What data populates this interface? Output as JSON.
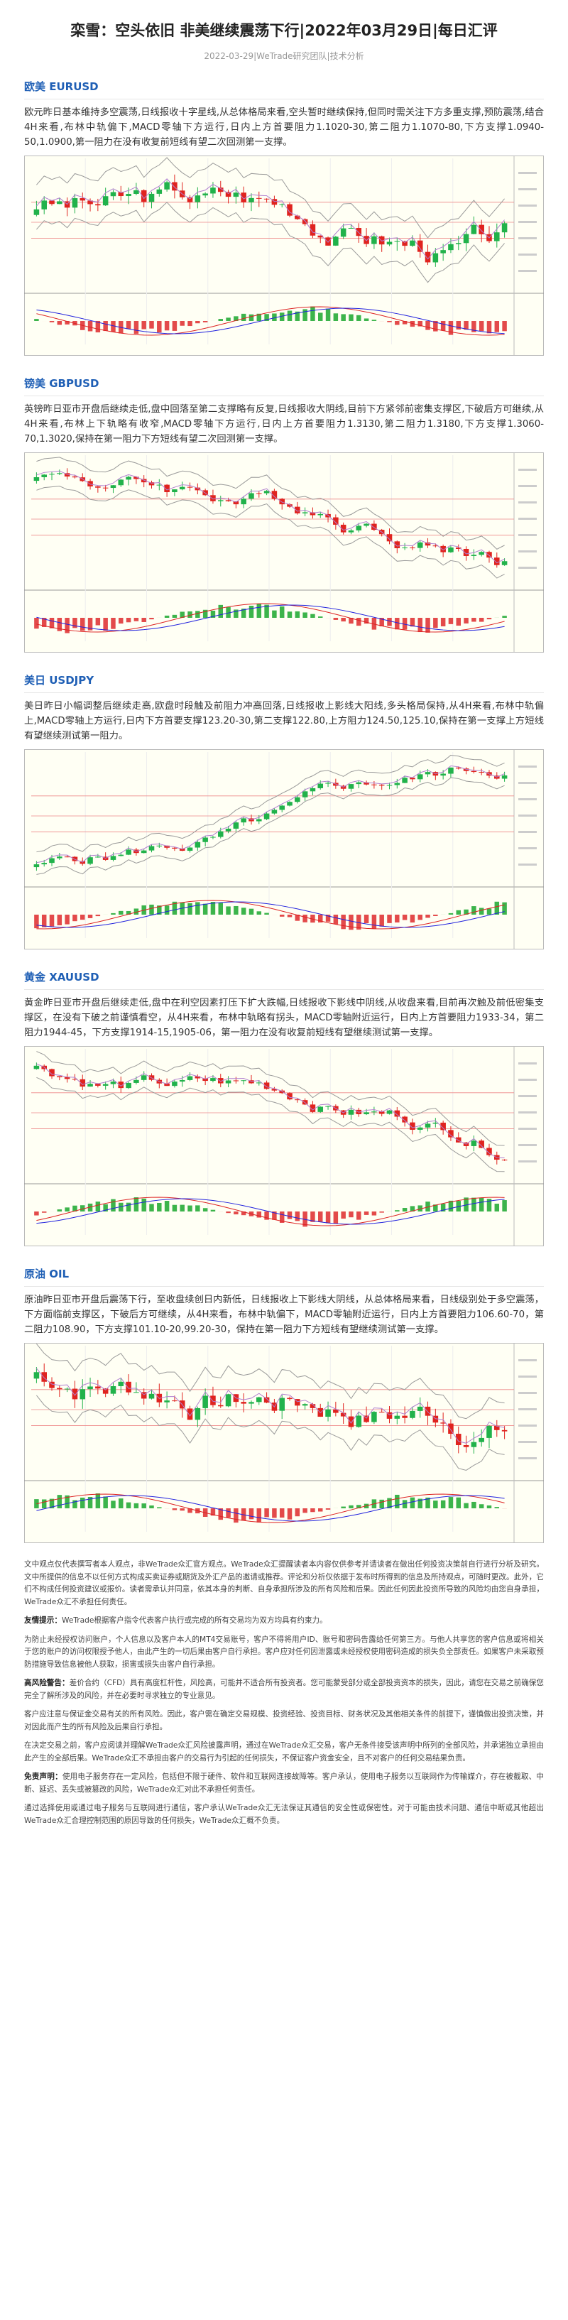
{
  "header": {
    "title": "栾雪：空头依旧 非美继续震荡下行|2022年03月29日|每日汇评",
    "meta": "2022-03-29|WeTrade研究团队|技术分析"
  },
  "sections": [
    {
      "heading": "欧美 EURUSD",
      "text": "欧元昨日基本维持多空震荡,日线报收十字星线,从总体格局来看,空头暂时继续保持,但同时需关注下方多重支撑,预防震荡,结合4H来看,布林中轨偏下,MACD零轴下方运行,日内上方首要阻力1.1020-30,第二阻力1.1070-80,下方支撑1.0940-50,1.0900,第一阻力在没有收复前短线有望二次回测第一支撑。"
    },
    {
      "heading": "镑美 GBPUSD",
      "text": "英镑昨日亚市开盘后继续走低,盘中回落至第二支撑略有反复,日线报收大阴线,目前下方紧邻前密集支撑区,下破后方可继续,从4H来看,布林上下轨略有收窄,MACD零轴下方运行,日内上方首要阻力1.3130,第二阻力1.3180,下方支撑1.3060-70,1.3020,保持在第一阻力下方短线有望二次回测第一支撑。"
    },
    {
      "heading": "美日 USDJPY",
      "text": "美日昨日小幅调整后继续走高,欧盘时段触及前阻力冲高回落,日线报收上影线大阳线,多头格局保持,从4H来看,布林中轨偏上,MACD零轴上方运行,日内下方首要支撑123.20-30,第二支撑122.80,上方阻力124.50,125.10,保持在第一支撑上方短线有望继续测试第一阻力。"
    },
    {
      "heading": "黄金 XAUUSD",
      "text": "黄金昨日亚市开盘后继续走低,盘中在利空因素打压下扩大跌幅,日线报收下影线中阴线,从收盘来看,目前再次触及前低密集支撑区，在没有下破之前谨慎看空，从4H来看，布林中轨略有拐头，MACD零轴附近运行，日内上方首要阻力1933-34，第二阻力1944-45，下方支撑1914-15,1905-06，第一阻力在没有收复前短线有望继续测试第一支撑。"
    },
    {
      "heading": "原油 OIL",
      "text": "原油昨日亚市开盘后震荡下行，至收盘续创日内新低，日线报收上下影线大阴线，从总体格局来看，日线级别处于多空震荡，下方面临前支撑区，下破后方可继续，从4H来看，布林中轨偏下，MACD零轴附近运行，日内上方首要阻力106.60-70，第二阻力108.90，下方支撑101.10-20,99.20-30，保持在第一阻力下方短线有望继续测试第一支撑。"
    }
  ],
  "disclaimer": [
    {
      "text": "文中观点仅代表撰写者本人观点，非WeTrade众汇官方观点。WeTrade众汇提醒读者本内容仅供参考并请读者在做出任何投资决策前自行进行分析及研究。文中所提供的信息不以任何方式构成买卖证券或期货及外汇产品的邀请或推荐。评论和分析仅依据于发布时所得到的信息及所持观点，可随时更改。此外，它们不构成任何投资建议或报价。读者需承认并同意，依其本身的判断、自身承担所涉及的所有风险和后果。因此任何因此投资所导致的风险均由您自身承担，WeTrade众汇不承担任何责任。"
    },
    {
      "lead": "友情提示：",
      "text": "WeTrade根据客户指令代表客户执行或完成的所有交易均为双方均具有约束力。"
    },
    {
      "text": "为防止未经授权访问账户，个人信息以及客户本人的MT4交易账号，客户不得将用户ID、账号和密码告露给任何第三方。与他人共享您的客户信息或将相关于您的账户的访问权限授予他人，由此产生的一切后果由客户自行承担。客户应对任何因泄露或未经授权使用密码造成的损失负全部责任。如果客户未采取预防措施导致信息被他人获取，损害或损失由客户自行承担。"
    },
    {
      "lead": "高风险警告：",
      "text": "差价合约（CFD）具有高度杠杆性，风险高，可能并不适合所有投资者。您可能蒙受部分或全部投资资本的损失，因此，请您在交易之前确保您完全了解所涉及的风险，并在必要时寻求独立的专业意见。"
    },
    {
      "text": "客户应注意与保证金交易有关的所有风险。因此，客户需在确定交易规模、投资经验、投资目标、财务状况及其他相关条件的前提下，谨慎做出投资决策，并对因此而产生的所有风险及后果自行承担。"
    },
    {
      "text": "在决定交易之前，客户应阅读并理解WeTrade众汇风险披露声明，通过在WeTrade众汇交易，客户无条件接受该声明中所列的全部风险，并承诺独立承担由此产生的全部后果。WeTrade众汇不承担由客户的交易行为引起的任何损失，不保证客户资金安全，且不对客户的任何交易结果负责。"
    },
    {
      "lead": "免责声明：",
      "text": "使用电子服务存在一定风险，包括但不限于硬件、软件和互联网连接故障等。客户承认，使用电子服务以互联网作为传输媒介，存在被截取、中断、延迟、丢失或被篡改的风险，WeTrade众汇对此不承担任何责任。"
    },
    {
      "text": "通过选择使用或通过电子服务与互联网进行通信，客户承认WeTrade众汇无法保证其通信的安全性或保密性。对于可能由技术问题、通信中断或其他超出WeTrade众汇合理控制范围的原因导致的任何损失，WeTrade众汇概不负责。"
    }
  ]
}
